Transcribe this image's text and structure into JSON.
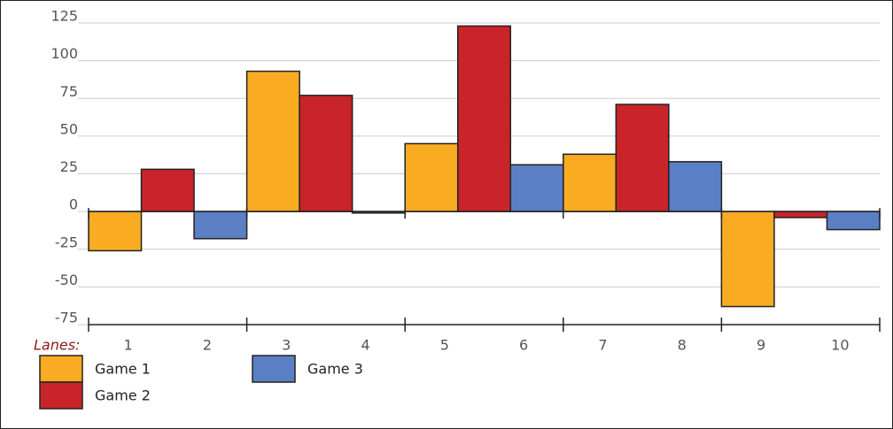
{
  "chart_data": {
    "type": "bar",
    "x_label": "Lanes:",
    "lanes": [
      1,
      2,
      3,
      4,
      5,
      6,
      7,
      8,
      9,
      10
    ],
    "categories": [
      null,
      null,
      null,
      null,
      null
    ],
    "series": [
      {
        "name": "Game 1",
        "color": "#f9ab22",
        "values": [
          -26,
          93,
          45,
          38,
          -63
        ]
      },
      {
        "name": "Game 2",
        "color": "#c8242a",
        "values": [
          28,
          77,
          123,
          71,
          -4
        ]
      },
      {
        "name": "Game 3",
        "color": "#5b7fc4",
        "values": [
          -18,
          -1,
          31,
          33,
          -12
        ]
      }
    ],
    "ylim": [
      -75,
      125
    ],
    "yticks": [
      -75,
      -50,
      -25,
      0,
      25,
      50,
      75,
      100,
      125
    ],
    "grid": true
  }
}
